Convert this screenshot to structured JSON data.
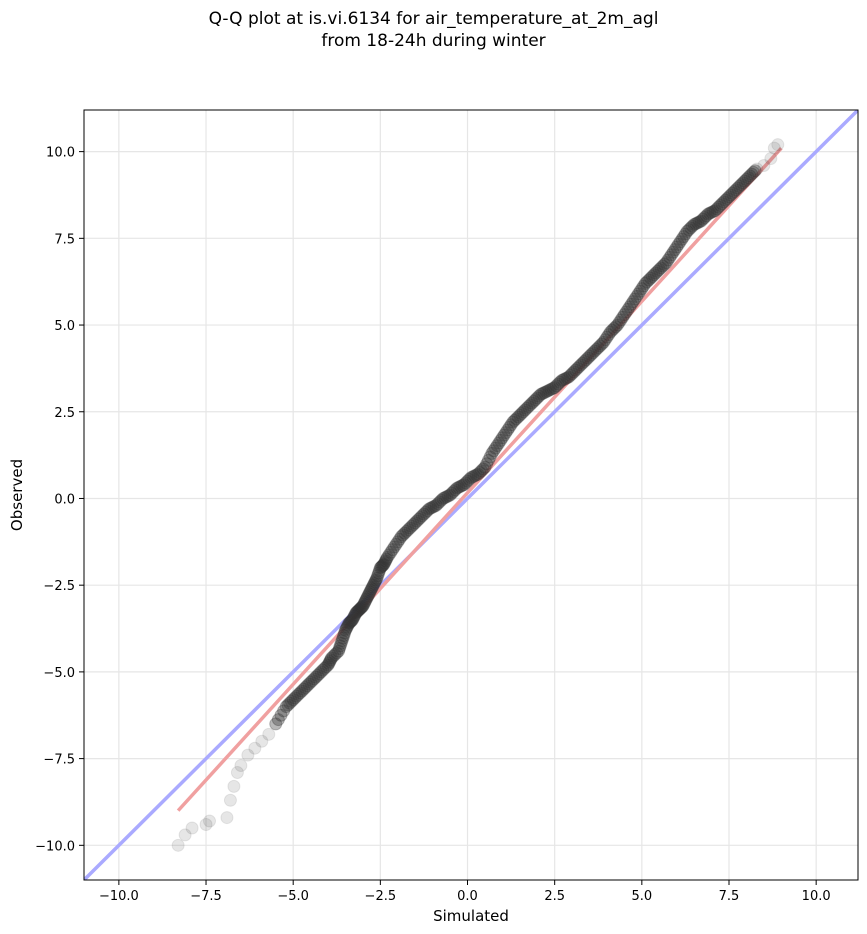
{
  "chart_data": {
    "type": "scatter",
    "title_line1": "Q-Q plot at is.vi.6134 for air_temperature_at_2m_agl",
    "title_line2": "from 18-24h during winter",
    "xlabel": "Simulated",
    "ylabel": "Observed",
    "xlim": [
      -11.0,
      11.2
    ],
    "ylim": [
      -11.0,
      11.2
    ],
    "xticks": [
      -10.0,
      -7.5,
      -5.0,
      -2.5,
      0.0,
      2.5,
      5.0,
      7.5,
      10.0
    ],
    "yticks": [
      -10.0,
      -7.5,
      -5.0,
      -2.5,
      0.0,
      2.5,
      5.0,
      7.5,
      10.0
    ],
    "xtick_labels": [
      "−10.0",
      "−7.5",
      "−5.0",
      "−2.5",
      "0.0",
      "2.5",
      "5.0",
      "7.5",
      "10.0"
    ],
    "ytick_labels": [
      "−10.0",
      "−7.5",
      "−5.0",
      "−2.5",
      "0.0",
      "2.5",
      "5.0",
      "7.5",
      "10.0"
    ],
    "grid": true,
    "colors": {
      "points": "#333333",
      "identity_line": "#aaaaff",
      "fit_line": "#f0a0a0"
    },
    "identity_line": {
      "x": [
        -11.0,
        11.2
      ],
      "y": [
        -11.0,
        11.2
      ]
    },
    "fit_line": {
      "x": [
        -8.3,
        9.0
      ],
      "y": [
        -9.0,
        10.1
      ]
    },
    "quantile_points": {
      "x": [
        -8.3,
        -8.1,
        -7.9,
        -7.5,
        -7.4,
        -6.9,
        -6.8,
        -6.7,
        -6.6,
        -6.5,
        -6.3,
        -6.1,
        -5.9,
        -5.7,
        -5.5,
        -5.2,
        -5.0,
        -4.8,
        -4.6,
        -4.4,
        -4.2,
        -4.0,
        -3.9,
        -3.7,
        -3.6,
        -3.5,
        -3.4,
        -3.3,
        -3.2,
        -3.1,
        -3.0,
        -2.9,
        -2.8,
        -2.7,
        -2.6,
        -2.5,
        -2.4,
        -2.3,
        -2.1,
        -1.9,
        -1.7,
        -1.5,
        -1.3,
        -1.1,
        -0.9,
        -0.7,
        -0.5,
        -0.3,
        -0.1,
        0.1,
        0.3,
        0.5,
        0.7,
        0.9,
        1.1,
        1.3,
        1.5,
        1.7,
        1.9,
        2.1,
        2.3,
        2.5,
        2.7,
        2.9,
        3.1,
        3.3,
        3.5,
        3.7,
        3.9,
        4.1,
        4.3,
        4.5,
        4.7,
        4.9,
        5.1,
        5.3,
        5.5,
        5.7,
        5.9,
        6.1,
        6.3,
        6.5,
        6.7,
        6.9,
        7.1,
        7.3,
        7.5,
        7.7,
        7.9,
        8.1,
        8.3,
        8.5,
        8.7,
        8.8,
        8.9
      ],
      "y": [
        -10.0,
        -9.7,
        -9.5,
        -9.4,
        -9.3,
        -9.2,
        -8.7,
        -8.3,
        -7.9,
        -7.7,
        -7.4,
        -7.2,
        -7.0,
        -6.8,
        -6.5,
        -6.0,
        -5.8,
        -5.6,
        -5.4,
        -5.2,
        -5.0,
        -4.8,
        -4.6,
        -4.4,
        -4.1,
        -3.8,
        -3.6,
        -3.5,
        -3.3,
        -3.2,
        -3.1,
        -2.9,
        -2.7,
        -2.5,
        -2.3,
        -2.0,
        -1.9,
        -1.7,
        -1.4,
        -1.1,
        -0.9,
        -0.7,
        -0.5,
        -0.3,
        -0.2,
        0.0,
        0.1,
        0.3,
        0.4,
        0.6,
        0.7,
        0.9,
        1.3,
        1.6,
        1.9,
        2.2,
        2.4,
        2.6,
        2.8,
        3.0,
        3.1,
        3.2,
        3.4,
        3.5,
        3.7,
        3.9,
        4.1,
        4.3,
        4.5,
        4.8,
        5.0,
        5.3,
        5.6,
        5.9,
        6.2,
        6.4,
        6.6,
        6.8,
        7.1,
        7.4,
        7.7,
        7.9,
        8.0,
        8.2,
        8.3,
        8.5,
        8.7,
        8.9,
        9.1,
        9.3,
        9.5,
        9.6,
        9.8,
        10.1,
        10.2
      ]
    }
  }
}
